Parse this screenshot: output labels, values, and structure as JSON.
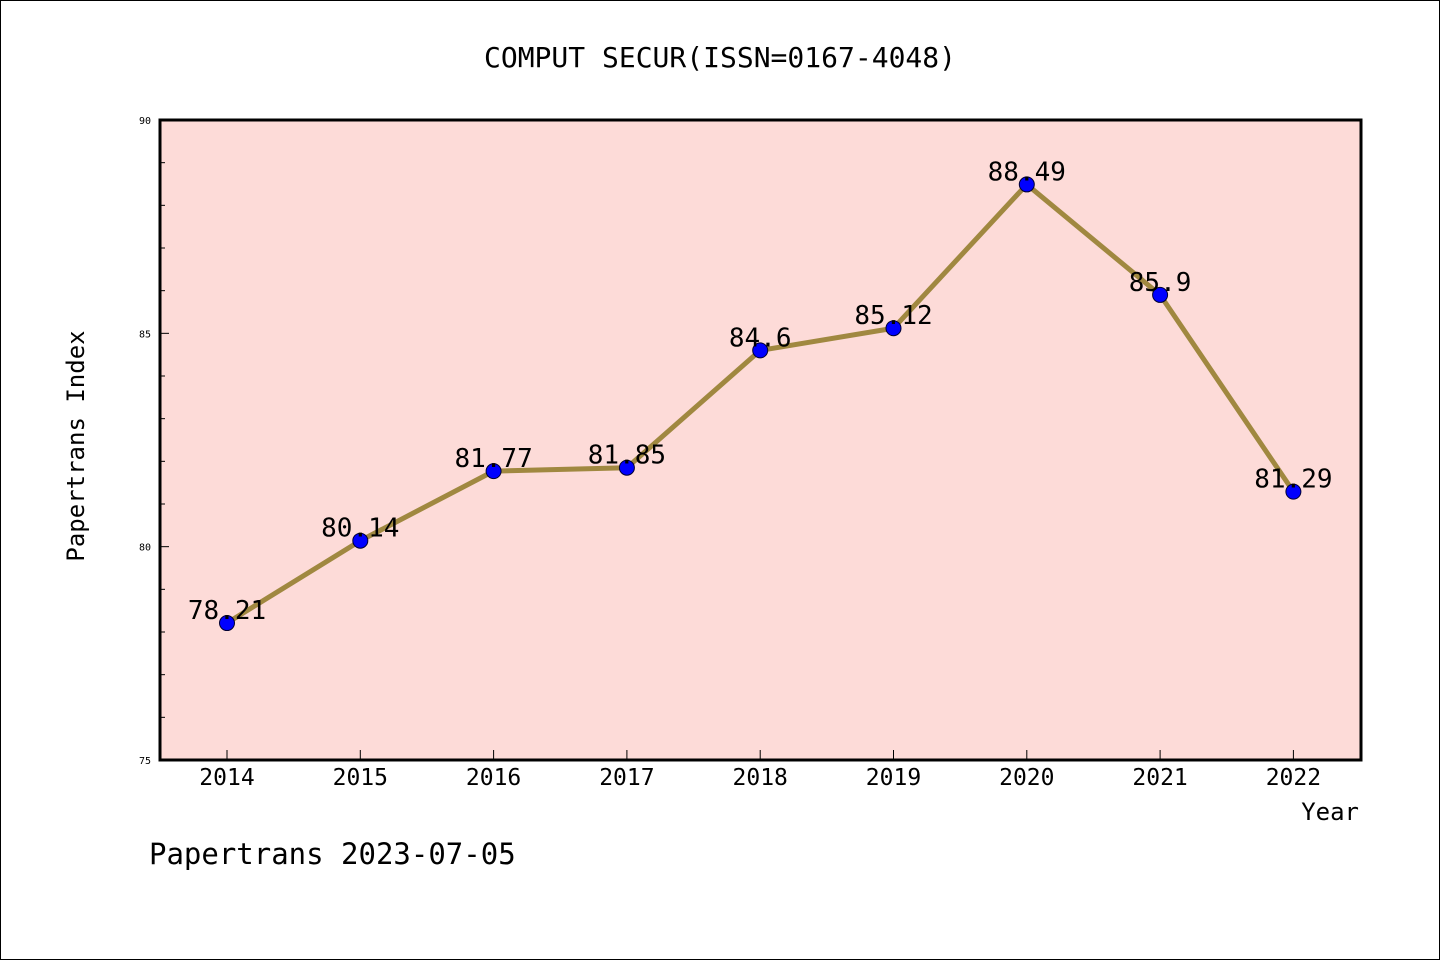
{
  "chart_data": {
    "type": "line",
    "title": "COMPUT SECUR(ISSN=0167-4048)",
    "xlabel": "Year",
    "ylabel": "Papertrans Index",
    "categories": [
      "2014",
      "2015",
      "2016",
      "2017",
      "2018",
      "2019",
      "2020",
      "2021",
      "2022"
    ],
    "series": [
      {
        "values": [
          78.21,
          80.14,
          81.77,
          81.85,
          84.6,
          85.12,
          88.49,
          85.9,
          81.29
        ],
        "data_labels": [
          "78.21",
          "80.14",
          "81.77",
          "81.85",
          "84.6",
          "85.12",
          "88.49",
          "85.9",
          "81.29"
        ],
        "line_color": "#a08840",
        "marker_color": "#0000ff"
      }
    ],
    "ylim": [
      75,
      90
    ],
    "yticks": [
      "75",
      "80",
      "85",
      "90"
    ],
    "y_minor_step": 1,
    "grid": false,
    "plot_background": "#fddbd8"
  },
  "footer": "Papertrans 2023-07-05"
}
